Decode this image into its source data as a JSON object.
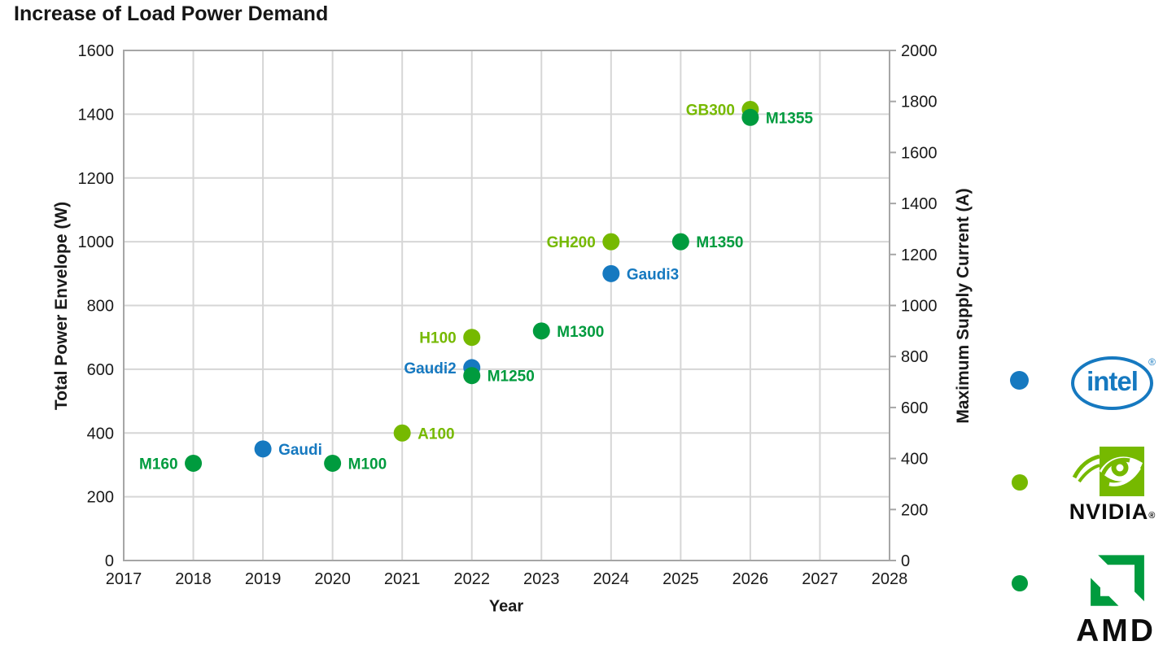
{
  "chart_data": {
    "type": "scatter",
    "title": "Increase of Load Power Demand",
    "xlabel": "Year",
    "xlim": [
      2017,
      2028
    ],
    "x_ticks": [
      2017,
      2018,
      2019,
      2020,
      2021,
      2022,
      2023,
      2024,
      2025,
      2026,
      2027,
      2028
    ],
    "left_axis": {
      "label": "Total Power Envelope (W)",
      "lim": [
        0,
        1600
      ],
      "ticks": [
        0,
        200,
        400,
        600,
        800,
        1000,
        1200,
        1400,
        1600
      ]
    },
    "right_axis": {
      "label": "Maximum Supply Current (A)",
      "lim": [
        0,
        2000
      ],
      "ticks": [
        0,
        200,
        400,
        600,
        800,
        1000,
        1200,
        1400,
        1600,
        1800,
        2000
      ]
    },
    "grid": true,
    "legend_position": "right",
    "series": [
      {
        "name": "Intel",
        "color": "#1679C0",
        "points": [
          {
            "label": "Gaudi",
            "x": 2019,
            "y": 350,
            "label_side": "right"
          },
          {
            "label": "Gaudi2",
            "x": 2022,
            "y": 605,
            "label_side": "left"
          },
          {
            "label": "Gaudi3",
            "x": 2024,
            "y": 900,
            "label_side": "right"
          }
        ]
      },
      {
        "name": "NVIDIA",
        "color": "#76B900",
        "points": [
          {
            "label": "A100",
            "x": 2021,
            "y": 400,
            "label_side": "right"
          },
          {
            "label": "H100",
            "x": 2022,
            "y": 700,
            "label_side": "left"
          },
          {
            "label": "GH200",
            "x": 2024,
            "y": 1000,
            "label_side": "left"
          },
          {
            "label": "GB300",
            "x": 2026,
            "y": 1415,
            "label_side": "left"
          }
        ]
      },
      {
        "name": "AMD",
        "color": "#009B3E",
        "points": [
          {
            "label": "M160",
            "x": 2018,
            "y": 305,
            "label_side": "left"
          },
          {
            "label": "M100",
            "x": 2020,
            "y": 305,
            "label_side": "right"
          },
          {
            "label": "M1250",
            "x": 2022,
            "y": 580,
            "label_side": "right"
          },
          {
            "label": "M1300",
            "x": 2023,
            "y": 720,
            "label_side": "right"
          },
          {
            "label": "M1350",
            "x": 2025,
            "y": 1000,
            "label_side": "right"
          },
          {
            "label": "M1355",
            "x": 2026,
            "y": 1390,
            "label_side": "right"
          }
        ]
      }
    ]
  },
  "legend": {
    "items": [
      {
        "name": "Intel",
        "marker_color": "#1679C0",
        "wordmark": "intel",
        "registered_mark": "®"
      },
      {
        "name": "NVIDIA",
        "marker_color": "#76B900",
        "wordmark": "NVIDIA",
        "registered_mark": "®"
      },
      {
        "name": "AMD",
        "marker_color": "#009B3E",
        "wordmark": "AMD"
      }
    ]
  },
  "colors": {
    "intel": "#1679C0",
    "nvidia": "#76B900",
    "amd": "#009B3E",
    "grid": "#D6D6D6",
    "axis": "#A6A6A6",
    "text": "#1A1A1A",
    "wordmark": "#0D0D0D"
  }
}
